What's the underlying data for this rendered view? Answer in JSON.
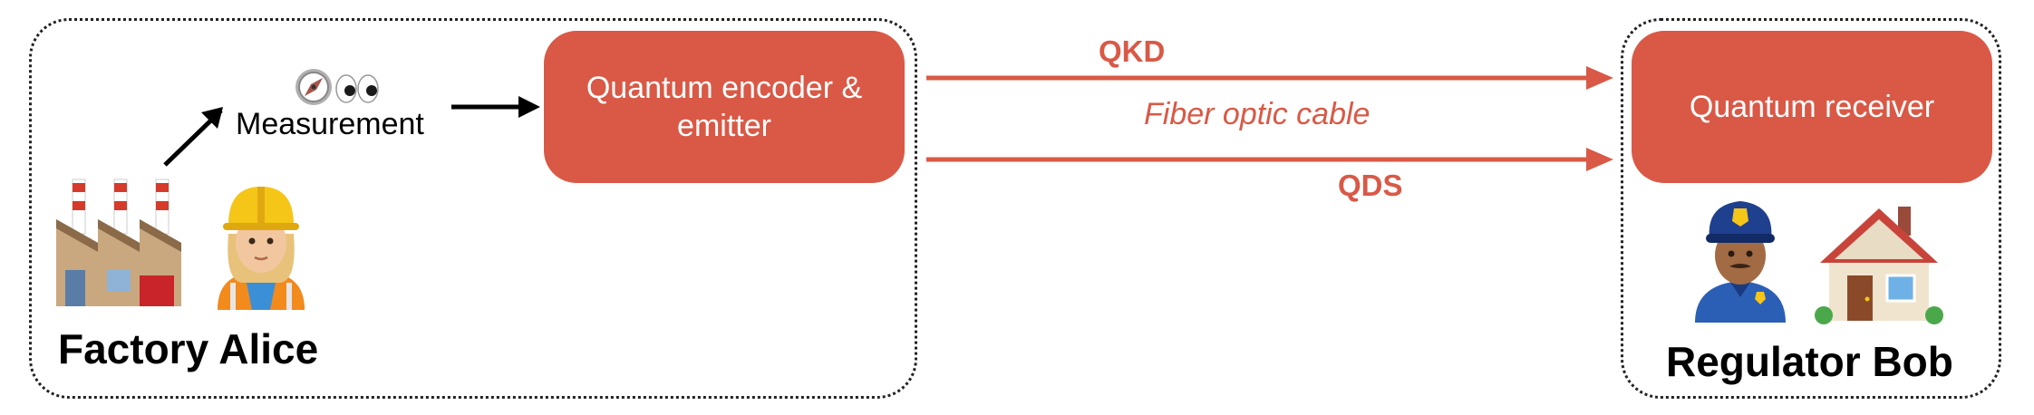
{
  "colors": {
    "accent": "#d95946",
    "text": "#000000",
    "border": "#222222"
  },
  "alice": {
    "title": "Factory Alice",
    "measurement_label": "Measurement",
    "encoder_label": "Quantum encoder & emitter",
    "icons": [
      "compass-icon",
      "eyes-icon",
      "factory-icon",
      "construction-worker-icon"
    ]
  },
  "channel": {
    "qkd_label": "QKD",
    "qds_label": "QDS",
    "medium_label": "Fiber optic cable"
  },
  "bob": {
    "title": "Regulator Bob",
    "receiver_label": "Quantum receiver",
    "icons": [
      "police-officer-icon",
      "house-icon"
    ]
  }
}
